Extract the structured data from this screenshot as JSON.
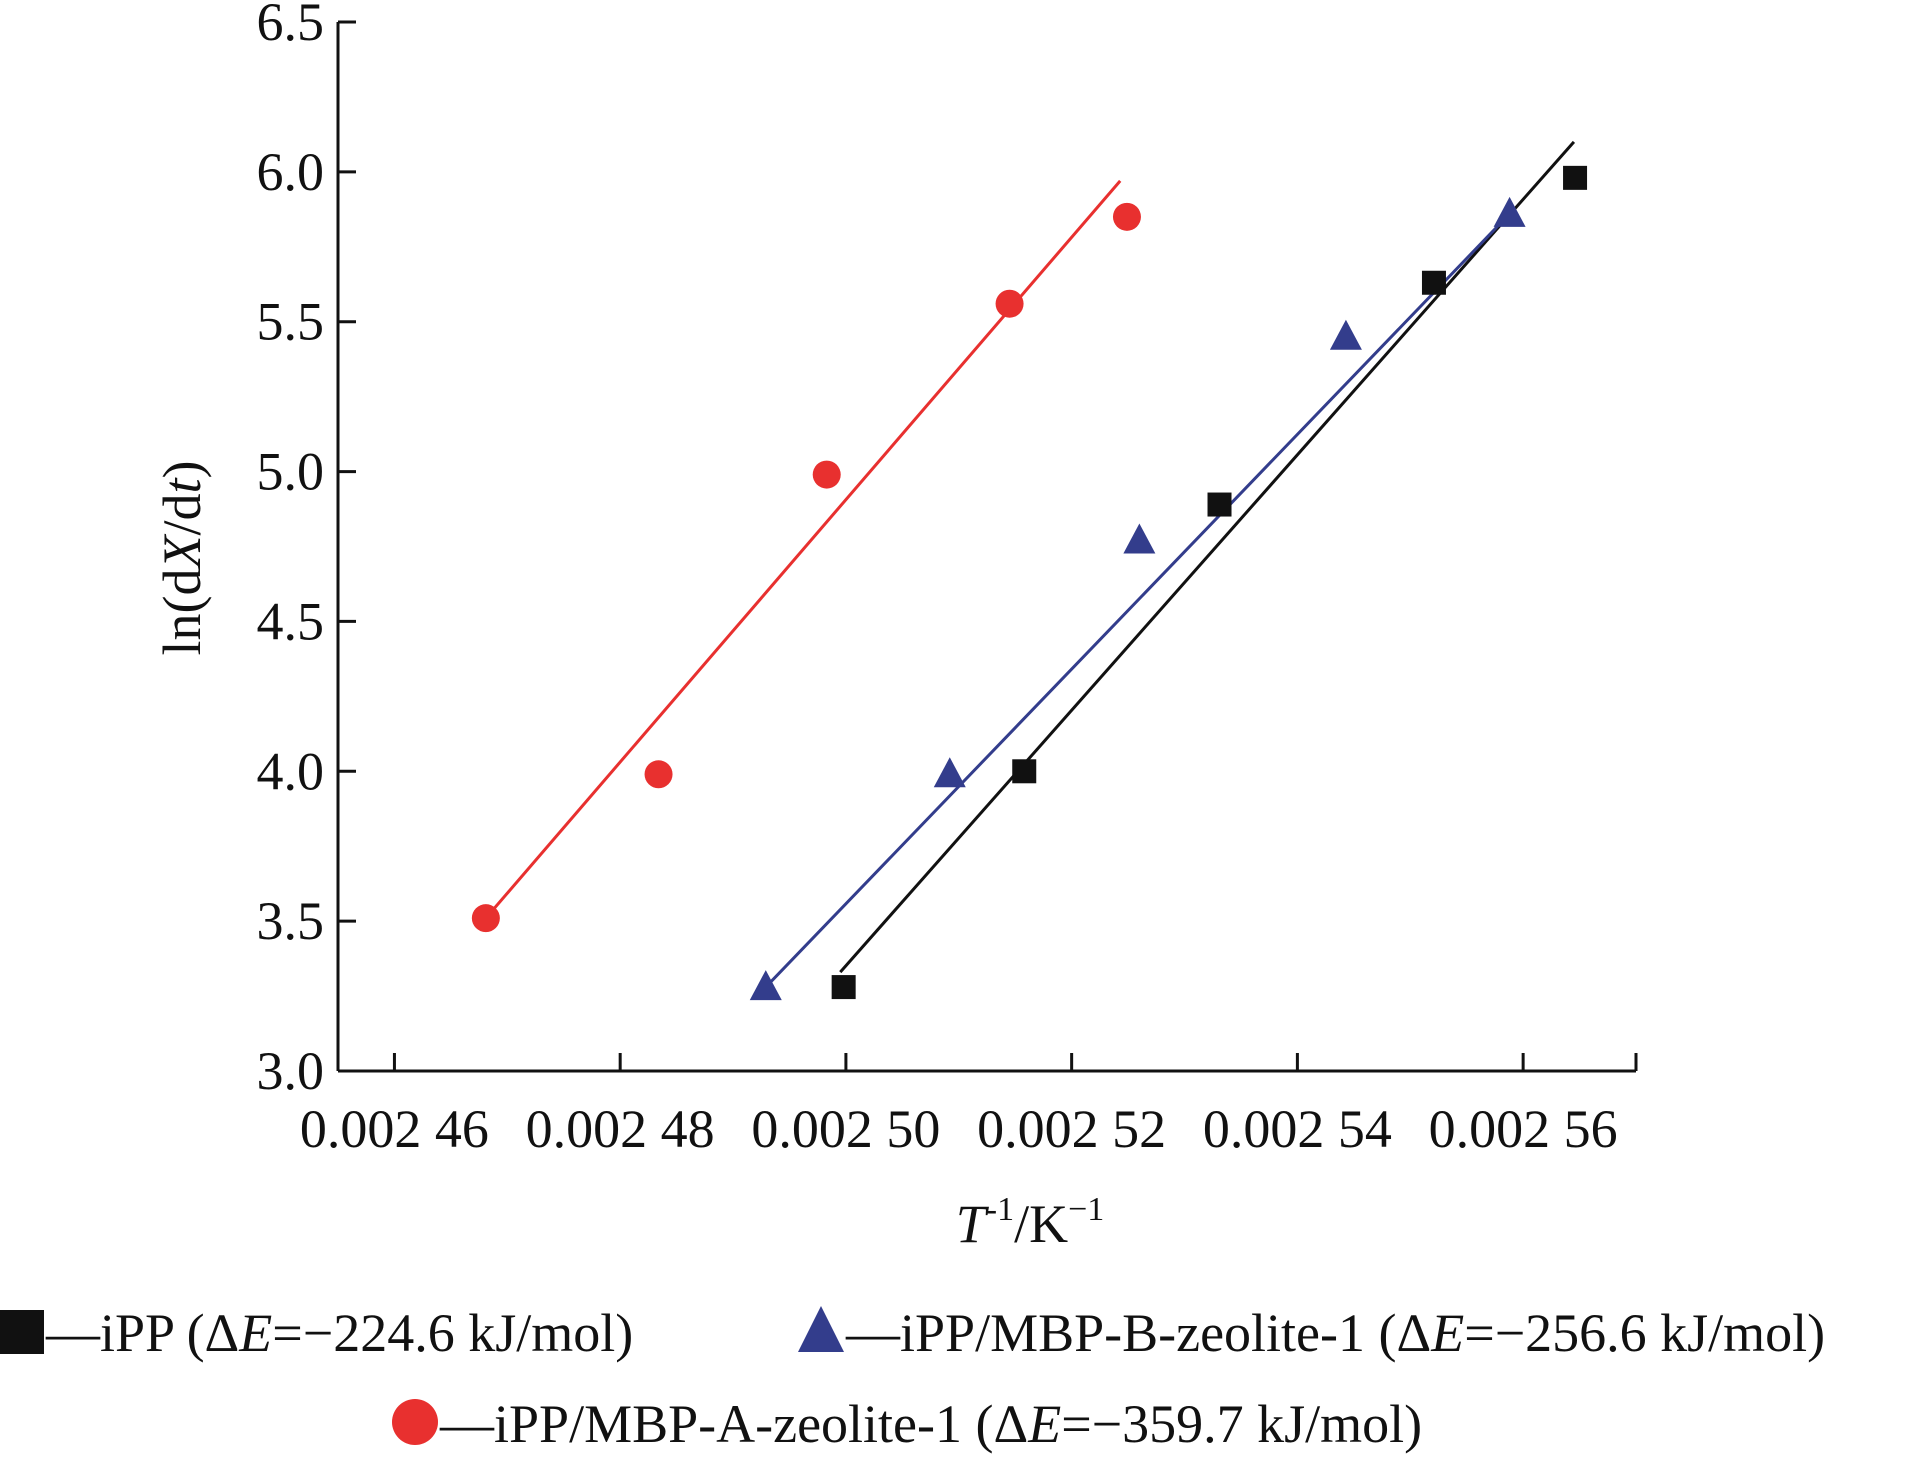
{
  "chart_data": {
    "type": "scatter",
    "xlabel": {
      "main": "T",
      "sup1": "-1",
      "rest": "/K",
      "sup2": "−1"
    },
    "ylabel": {
      "pre": "ln(d",
      "X": "X",
      "mid": "/d",
      "t": "t",
      "post": ")"
    },
    "xlim": [
      0.002455,
      0.00257
    ],
    "ylim": [
      3.0,
      6.5
    ],
    "xticks": [
      0.00246,
      0.00248,
      0.0025,
      0.00252,
      0.00254,
      0.00256
    ],
    "xtick_labels": [
      "0.002 46",
      "0.002 48",
      "0.002 50",
      "0.002 52",
      "0.002 54",
      "0.002 56"
    ],
    "yticks": [
      3.0,
      3.5,
      4.0,
      4.5,
      5.0,
      5.5,
      6.0,
      6.5
    ],
    "ytick_labels": [
      "3.0",
      "3.5",
      "4.0",
      "4.5",
      "5.0",
      "5.5",
      "6.0",
      "6.5"
    ],
    "grid": false,
    "legend_position": "bottom",
    "series": [
      {
        "name": "iPP",
        "legend_label": "—iPP (ΔE=−224.6 kJ/mol)",
        "legend_parts": {
          "pre": "—iPP (Δ",
          "E": "E",
          "post": "=−224.6 kJ/mol)"
        },
        "marker": "square",
        "color": "#111111",
        "line_color": "#111111",
        "x": [
          0.0024998,
          0.0025158,
          0.0025331,
          0.0025521,
          0.0025646
        ],
        "y": [
          3.28,
          4.0,
          4.89,
          5.63,
          5.98
        ],
        "fit_x": [
          0.0024995,
          0.0025645
        ],
        "fit_y": [
          3.33,
          6.1
        ]
      },
      {
        "name": "iPP/MBP-B-zeolite-1",
        "legend_label": "—iPP/MBP-B-zeolite-1 (ΔE=−256.6 kJ/mol)",
        "legend_parts": {
          "pre": "—iPP/MBP-B-zeolite-1 (Δ",
          "E": "E",
          "post": "=−256.6 kJ/mol)"
        },
        "marker": "triangle",
        "color": "#333d8c",
        "line_color": "#333d8c",
        "x": [
          0.0024929,
          0.0025092,
          0.002526,
          0.0025443,
          0.0025588
        ],
        "y": [
          3.28,
          3.99,
          4.77,
          5.45,
          5.86
        ],
        "fit_x": [
          0.0024929,
          0.0025588
        ],
        "fit_y": [
          3.28,
          5.86
        ]
      },
      {
        "name": "iPP/MBP-A-zeolite-1",
        "legend_label": "—iPP/MBP-A-zeolite-1 (ΔE=−359.7 kJ/mol)",
        "legend_parts": {
          "pre": "—iPP/MBP-A-zeolite-1 (Δ",
          "E": "E",
          "post": "=−359.7 kJ/mol)"
        },
        "marker": "circle",
        "color": "#e8302f",
        "line_color": "#e8302f",
        "x": [
          0.0024681,
          0.0024834,
          0.0024983,
          0.0025145,
          0.0025249
        ],
        "y": [
          3.51,
          3.99,
          4.99,
          5.56,
          5.85
        ],
        "fit_x": [
          0.0024681,
          0.0025243
        ],
        "fit_y": [
          3.51,
          5.97
        ]
      }
    ]
  }
}
